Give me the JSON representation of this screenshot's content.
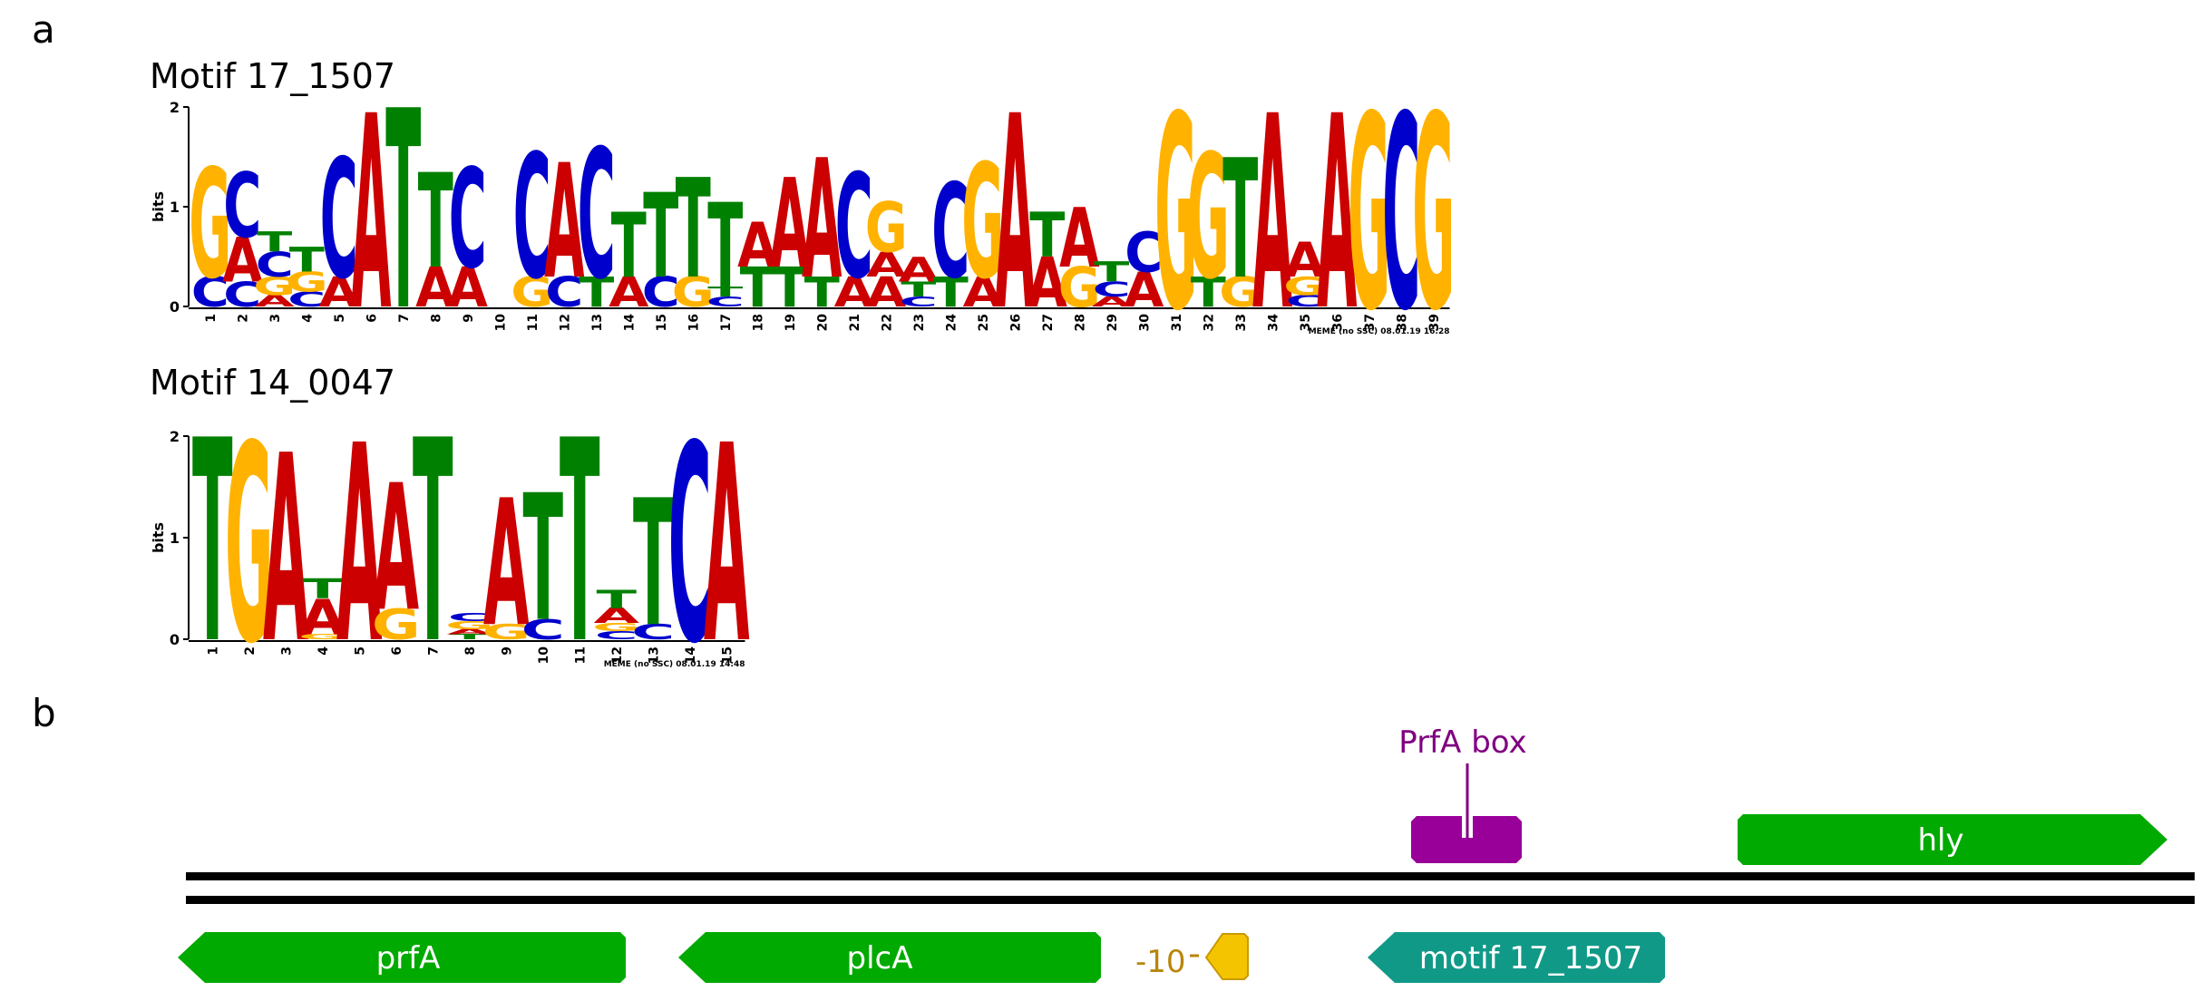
{
  "panels": {
    "a": "a",
    "b": "b"
  },
  "motifs": [
    {
      "title": "Motif 17_1507",
      "ylabel": "bits",
      "yticks": [
        "0",
        "1",
        "2"
      ],
      "footer": "MEME (no SSC) 08.01.19 16:28",
      "positions": [
        [
          [
            "C",
            0.3
          ],
          [
            "G",
            1.1
          ]
        ],
        [
          [
            "C",
            0.25
          ],
          [
            "A",
            0.45
          ],
          [
            "C",
            0.65
          ]
        ],
        [
          [
            "A",
            0.12
          ],
          [
            "G",
            0.18
          ],
          [
            "C",
            0.25
          ],
          [
            "T",
            0.2
          ]
        ],
        [
          [
            "C",
            0.15
          ],
          [
            "G",
            0.2
          ],
          [
            "T",
            0.25
          ]
        ],
        [
          [
            "A",
            0.3
          ],
          [
            "C",
            1.2
          ]
        ],
        [
          [
            "A",
            1.95
          ]
        ],
        [
          [
            "T",
            2.0
          ]
        ],
        [
          [
            "A",
            0.4
          ],
          [
            "T",
            0.95
          ]
        ],
        [
          [
            "A",
            0.4
          ],
          [
            "C",
            1.0
          ]
        ],
        [],
        [
          [
            "G",
            0.3
          ],
          [
            "C",
            1.25
          ]
        ],
        [
          [
            "C",
            0.3
          ],
          [
            "A",
            1.15
          ]
        ],
        [
          [
            "T",
            0.3
          ],
          [
            "C",
            1.3
          ]
        ],
        [
          [
            "A",
            0.3
          ],
          [
            "T",
            0.65
          ]
        ],
        [
          [
            "C",
            0.3
          ],
          [
            "T",
            0.85
          ]
        ],
        [
          [
            "G",
            0.3
          ],
          [
            "T",
            1.0
          ]
        ],
        [
          [
            "C",
            0.1
          ],
          [
            "T",
            0.1
          ],
          [
            "T",
            0.85
          ]
        ],
        [
          [
            "T",
            0.4
          ],
          [
            "A",
            0.45
          ]
        ],
        [
          [
            "T",
            0.4
          ],
          [
            "A",
            0.9
          ]
        ],
        [
          [
            "T",
            0.3
          ],
          [
            "A",
            1.2
          ]
        ],
        [
          [
            "A",
            0.3
          ],
          [
            "C",
            1.05
          ]
        ],
        [
          [
            "A",
            0.3
          ],
          [
            "A",
            0.25
          ],
          [
            "G",
            0.5
          ]
        ],
        [
          [
            "C",
            0.1
          ],
          [
            "T",
            0.15
          ],
          [
            "A",
            0.25
          ]
        ],
        [
          [
            "T",
            0.3
          ],
          [
            "C",
            0.95
          ]
        ],
        [
          [
            "A",
            0.3
          ],
          [
            "G",
            1.15
          ]
        ],
        [
          [
            "A",
            1.95
          ]
        ],
        [
          [
            "A",
            0.5
          ],
          [
            "T",
            0.45
          ]
        ],
        [
          [
            "G",
            0.4
          ],
          [
            "A",
            0.6
          ]
        ],
        [
          [
            "A",
            0.1
          ],
          [
            "C",
            0.15
          ],
          [
            "T",
            0.2
          ]
        ],
        [
          [
            "A",
            0.35
          ],
          [
            "C",
            0.4
          ]
        ],
        [
          [
            "G",
            1.95
          ]
        ],
        [
          [
            "T",
            0.3
          ],
          [
            "G",
            1.25
          ]
        ],
        [
          [
            "G",
            0.3
          ],
          [
            "T",
            1.2
          ]
        ],
        [
          [
            "A",
            1.95
          ]
        ],
        [
          [
            "C",
            0.12
          ],
          [
            "G",
            0.18
          ],
          [
            "A",
            0.35
          ]
        ],
        [
          [
            "A",
            1.95
          ]
        ],
        [
          [
            "G",
            1.95
          ]
        ],
        [
          [
            "C",
            1.95
          ]
        ],
        [
          [
            "G",
            1.95
          ]
        ]
      ],
      "xticks": [
        "1",
        "2",
        "3",
        "4",
        "5",
        "6",
        "7",
        "8",
        "9",
        "10",
        "11",
        "12",
        "13",
        "14",
        "15",
        "16",
        "17",
        "18",
        "19",
        "20",
        "21",
        "22",
        "23",
        "24",
        "25",
        "26",
        "27",
        "28",
        "29",
        "30",
        "31",
        "32",
        "33",
        "34",
        "35",
        "36",
        "37",
        "38",
        "39"
      ]
    },
    {
      "title": "Motif 14_0047",
      "ylabel": "bits",
      "yticks": [
        "0",
        "1",
        "2"
      ],
      "footer": "MEME (no SSC) 08.01.19 14:48",
      "positions": [
        [
          [
            "T",
            2.0
          ]
        ],
        [
          [
            "G",
            1.95
          ]
        ],
        [
          [
            "A",
            1.85
          ]
        ],
        [
          [
            "G",
            0.05
          ],
          [
            "A",
            0.35
          ],
          [
            "T",
            0.2
          ]
        ],
        [
          [
            "A",
            1.95
          ]
        ],
        [
          [
            "G",
            0.3
          ],
          [
            "A",
            1.25
          ]
        ],
        [
          [
            "T",
            2.0
          ]
        ],
        [
          [
            "T",
            0.05
          ],
          [
            "A",
            0.05
          ],
          [
            "G",
            0.08
          ],
          [
            "C",
            0.08
          ]
        ],
        [
          [
            "G",
            0.15
          ],
          [
            "A",
            1.25
          ]
        ],
        [
          [
            "C",
            0.2
          ],
          [
            "T",
            1.25
          ]
        ],
        [
          [
            "T",
            2.0
          ]
        ],
        [
          [
            "C",
            0.08
          ],
          [
            "G",
            0.08
          ],
          [
            "A",
            0.15
          ],
          [
            "T",
            0.18
          ]
        ],
        [
          [
            "C",
            0.15
          ],
          [
            "T",
            1.25
          ]
        ],
        [
          [
            "C",
            1.95
          ]
        ],
        [
          [
            "A",
            1.95
          ]
        ]
      ],
      "xticks": [
        "1",
        "2",
        "3",
        "4",
        "5",
        "6",
        "7",
        "8",
        "9",
        "10",
        "11",
        "12",
        "13",
        "14",
        "15"
      ]
    }
  ],
  "colors": {
    "A": "#cc0000",
    "C": "#0000cc",
    "G": "#ffb300",
    "T": "#008000"
  },
  "diagram": {
    "prfa_box_label": "PrfA box",
    "minus10_label": "-10",
    "genes": [
      {
        "id": "hly",
        "label": "hly",
        "strand": "+",
        "color": "#00aa00"
      },
      {
        "id": "prfA",
        "label": "prfA",
        "strand": "-",
        "color": "#00aa00"
      },
      {
        "id": "plcA",
        "label": "plcA",
        "strand": "-",
        "color": "#00aa00"
      },
      {
        "id": "motif",
        "label": "motif 17_1507",
        "strand": "-",
        "color": "#119988"
      }
    ],
    "prfa_box_color": "#990099",
    "minus10_color": "#f5c400",
    "minus10_text_color": "#b8860b"
  }
}
